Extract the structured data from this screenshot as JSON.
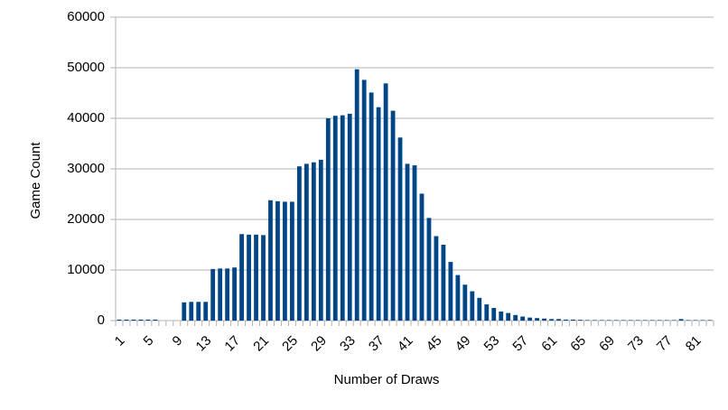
{
  "chart_data": {
    "type": "bar",
    "x_label": "Number of Draws",
    "y_label": "Game Count",
    "categories": [
      1,
      null,
      null,
      null,
      5,
      null,
      null,
      null,
      9,
      null,
      null,
      null,
      13,
      null,
      null,
      null,
      17,
      null,
      null,
      null,
      21,
      null,
      null,
      null,
      25,
      null,
      null,
      null,
      29,
      null,
      null,
      null,
      33,
      null,
      null,
      null,
      37,
      null,
      null,
      null,
      41,
      null,
      null,
      null,
      45,
      null,
      null,
      null,
      49,
      null,
      null,
      null,
      53,
      null,
      null,
      null,
      57,
      null,
      null,
      null,
      61,
      null,
      null,
      null,
      65,
      null,
      null,
      null,
      69,
      null,
      null,
      null,
      73,
      null,
      null,
      null,
      77,
      null,
      null,
      null,
      81,
      null,
      null
    ],
    "values": [
      200,
      200,
      200,
      200,
      200,
      200,
      0,
      0,
      0,
      3600,
      3700,
      3700,
      3700,
      10200,
      10300,
      10300,
      10500,
      17100,
      17000,
      17000,
      16900,
      23800,
      23600,
      23500,
      23500,
      30500,
      31000,
      31300,
      31800,
      40000,
      40500,
      40600,
      40900,
      49700,
      47600,
      45100,
      42200,
      46900,
      41500,
      36200,
      31000,
      30700,
      25100,
      20300,
      16700,
      15000,
      11600,
      9000,
      7100,
      5800,
      4500,
      3200,
      2500,
      1800,
      1500,
      1100,
      800,
      600,
      500,
      400,
      300,
      300,
      200,
      200,
      150,
      100,
      100,
      100,
      100,
      100,
      100,
      100,
      100,
      100,
      100,
      100,
      100,
      100,
      300,
      100,
      100,
      100,
      100
    ],
    "color": "#004586",
    "ylim": [
      0,
      60000
    ],
    "yticks": [
      0,
      10000,
      20000,
      30000,
      40000,
      50000,
      60000
    ],
    "grid": true
  }
}
